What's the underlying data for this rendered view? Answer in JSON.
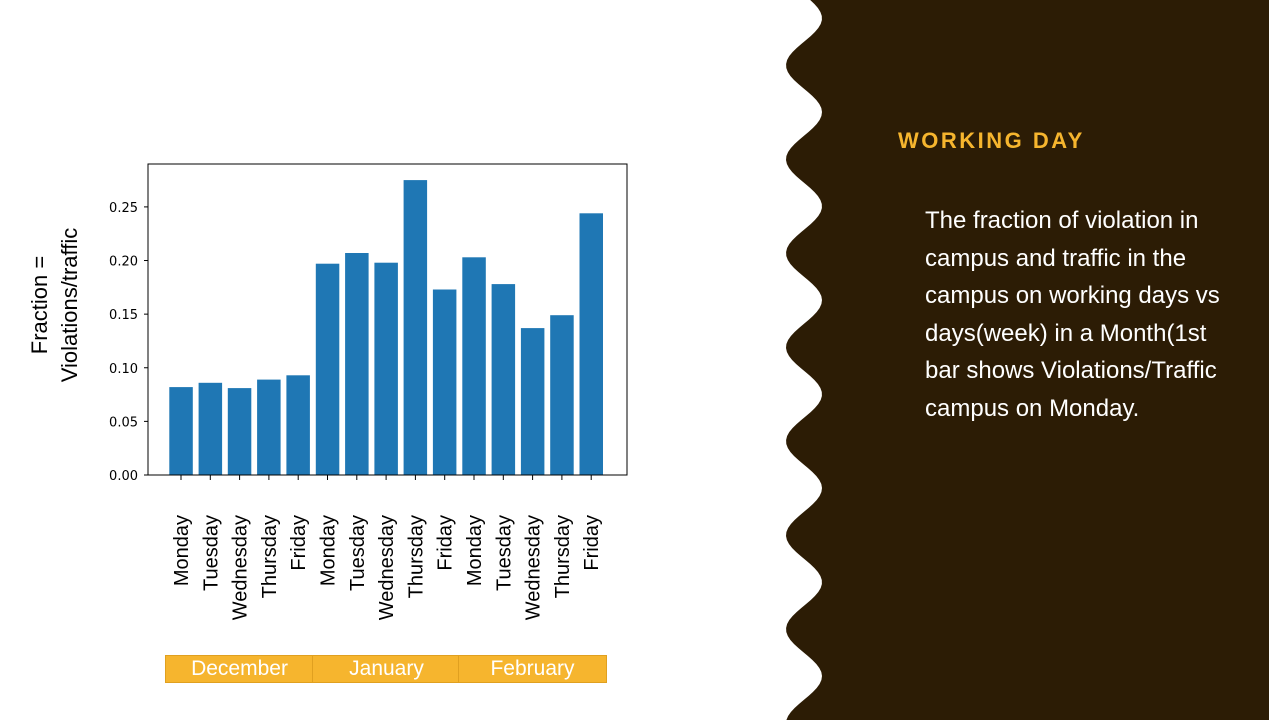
{
  "panel": {
    "title": "WORKING DAY",
    "body": "The fraction of violation in campus and traffic in the campus on working days vs days(week) in a Month(1st bar shows Violations/Traffic campus on Monday."
  },
  "colors": {
    "bar": "#1f77b4",
    "panel_bg": "#2c1c05",
    "accent": "#f6b52e"
  },
  "chart_data": {
    "type": "bar",
    "ylabel_lines": [
      "Fraction =",
      "Violations/traffic"
    ],
    "ylim": [
      0,
      0.29
    ],
    "yticks": [
      "0.00",
      "0.05",
      "0.10",
      "0.15",
      "0.20",
      "0.25"
    ],
    "categories": [
      "Monday",
      "Tuesday",
      "Wednesday",
      "Thursday",
      "Friday",
      "Monday",
      "Tuesday",
      "Wednesday",
      "Thursday",
      "Friday",
      "Monday",
      "Tuesday",
      "Wednesday",
      "Thursday",
      "Friday"
    ],
    "values": [
      0.082,
      0.086,
      0.081,
      0.089,
      0.093,
      0.197,
      0.207,
      0.198,
      0.275,
      0.173,
      0.203,
      0.178,
      0.137,
      0.149,
      0.244
    ],
    "groups": [
      {
        "label": "December",
        "start": 0,
        "end": 4
      },
      {
        "label": "January",
        "start": 5,
        "end": 9
      },
      {
        "label": "February",
        "start": 10,
        "end": 14
      }
    ],
    "grid": false
  }
}
